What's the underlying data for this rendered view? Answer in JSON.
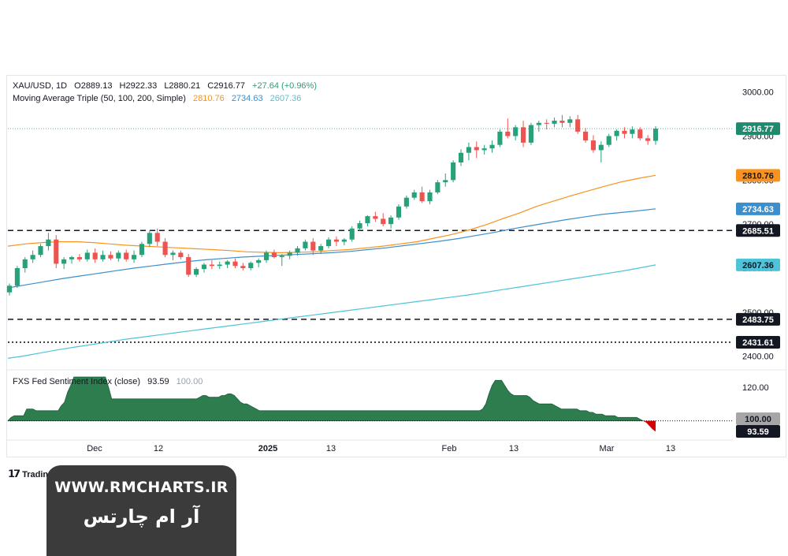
{
  "legend": {
    "symbol": "XAU/USD, 1D",
    "open": "O2889.13",
    "high": "H2922.33",
    "low": "L2880.21",
    "close": "C2916.77",
    "change": "+27.64 (+0.96%)",
    "ma_title": "Moving Average Triple (50, 100, 200, Simple)",
    "ma50": "2810.76",
    "ma100": "2734.63",
    "ma200": "2607.36",
    "indicator_title": "FXS Fed Sentiment Index (close)",
    "indicator_value": "93.59",
    "indicator_base": "100.00"
  },
  "colors": {
    "up": "#26a17a",
    "down": "#ef5350",
    "ma50": "#f7931e",
    "ma100": "#3b8fcc",
    "ma200": "#4fc3d8",
    "price_label": "#1f8a6e",
    "sentiment_fill": "#2e7d4f",
    "sentiment_negative": "#d50000"
  },
  "price_axis_ticks": [
    "3000.00",
    "2900.00",
    "2800.00",
    "2700.00",
    "2600.00",
    "2500.00",
    "2400.00"
  ],
  "indicator_axis_ticks": [
    "120.00"
  ],
  "x_axis_labels": [
    {
      "label": "Dec",
      "bold": false
    },
    {
      "label": "12",
      "bold": false
    },
    {
      "label": "2025",
      "bold": true
    },
    {
      "label": "13",
      "bold": false
    },
    {
      "label": "Feb",
      "bold": false
    },
    {
      "label": "13",
      "bold": false
    },
    {
      "label": "Mar",
      "bold": false
    },
    {
      "label": "13",
      "bold": false
    }
  ],
  "price_badges": [
    {
      "text": "2916.77",
      "value": 2916.77,
      "style": "current"
    },
    {
      "text": "2810.76",
      "value": 2810.76,
      "style": "ma50"
    },
    {
      "text": "2734.63",
      "value": 2734.63,
      "style": "ma100"
    },
    {
      "text": "2685.51",
      "value": 2685.51,
      "style": "level"
    },
    {
      "text": "2607.36",
      "value": 2607.36,
      "style": "ma200"
    },
    {
      "text": "2483.75",
      "value": 2483.75,
      "style": "level"
    },
    {
      "text": "2431.61",
      "value": 2431.61,
      "style": "level"
    }
  ],
  "indicator_badges": [
    {
      "text": "100.00",
      "value": 100,
      "style": "base"
    },
    {
      "text": "93.59",
      "value": 93.59,
      "style": "dark"
    }
  ],
  "chart_data": {
    "type": "candlestick",
    "symbol": "XAU/USD",
    "timeframe": "1D",
    "ylim": [
      2385,
      3012
    ],
    "horizontal_levels": [
      {
        "value": 2685.51,
        "style": "dashed"
      },
      {
        "value": 2483.75,
        "style": "dashed"
      },
      {
        "value": 2431.61,
        "style": "dotted"
      }
    ],
    "candles": [
      [
        2545,
        2565,
        2538,
        2560
      ],
      [
        2560,
        2605,
        2555,
        2600
      ],
      [
        2600,
        2625,
        2590,
        2620
      ],
      [
        2620,
        2640,
        2612,
        2630
      ],
      [
        2630,
        2655,
        2625,
        2650
      ],
      [
        2650,
        2680,
        2640,
        2665
      ],
      [
        2665,
        2675,
        2600,
        2610
      ],
      [
        2610,
        2625,
        2598,
        2620
      ],
      [
        2620,
        2628,
        2610,
        2625
      ],
      [
        2625,
        2632,
        2615,
        2620
      ],
      [
        2620,
        2642,
        2615,
        2635
      ],
      [
        2635,
        2645,
        2612,
        2620
      ],
      [
        2620,
        2640,
        2615,
        2630
      ],
      [
        2630,
        2638,
        2618,
        2622
      ],
      [
        2622,
        2640,
        2615,
        2635
      ],
      [
        2635,
        2642,
        2615,
        2620
      ],
      [
        2620,
        2640,
        2612,
        2630
      ],
      [
        2630,
        2660,
        2625,
        2655
      ],
      [
        2655,
        2685,
        2648,
        2680
      ],
      [
        2680,
        2690,
        2650,
        2660
      ],
      [
        2660,
        2668,
        2625,
        2630
      ],
      [
        2630,
        2640,
        2618,
        2635
      ],
      [
        2635,
        2640,
        2620,
        2625
      ],
      [
        2625,
        2632,
        2580,
        2585
      ],
      [
        2585,
        2602,
        2580,
        2598
      ],
      [
        2598,
        2612,
        2590,
        2608
      ],
      [
        2608,
        2618,
        2598,
        2605
      ],
      [
        2605,
        2615,
        2598,
        2608
      ],
      [
        2608,
        2618,
        2600,
        2615
      ],
      [
        2615,
        2622,
        2600,
        2605
      ],
      [
        2605,
        2612,
        2595,
        2600
      ],
      [
        2600,
        2615,
        2595,
        2612
      ],
      [
        2612,
        2622,
        2602,
        2618
      ],
      [
        2618,
        2640,
        2612,
        2635
      ],
      [
        2635,
        2642,
        2622,
        2625
      ],
      [
        2625,
        2632,
        2605,
        2628
      ],
      [
        2628,
        2640,
        2620,
        2635
      ],
      [
        2635,
        2650,
        2628,
        2645
      ],
      [
        2645,
        2665,
        2640,
        2660
      ],
      [
        2660,
        2668,
        2630,
        2640
      ],
      [
        2640,
        2655,
        2632,
        2650
      ],
      [
        2650,
        2670,
        2645,
        2665
      ],
      [
        2665,
        2672,
        2650,
        2660
      ],
      [
        2660,
        2668,
        2652,
        2665
      ],
      [
        2665,
        2695,
        2660,
        2690
      ],
      [
        2690,
        2708,
        2685,
        2702
      ],
      [
        2702,
        2720,
        2695,
        2718
      ],
      [
        2718,
        2728,
        2705,
        2712
      ],
      [
        2712,
        2725,
        2695,
        2700
      ],
      [
        2700,
        2720,
        2690,
        2715
      ],
      [
        2715,
        2745,
        2710,
        2740
      ],
      [
        2740,
        2765,
        2735,
        2760
      ],
      [
        2760,
        2778,
        2755,
        2772
      ],
      [
        2772,
        2785,
        2748,
        2752
      ],
      [
        2752,
        2778,
        2745,
        2772
      ],
      [
        2772,
        2800,
        2768,
        2795
      ],
      [
        2795,
        2815,
        2785,
        2800
      ],
      [
        2800,
        2845,
        2795,
        2840
      ],
      [
        2840,
        2870,
        2832,
        2862
      ],
      [
        2862,
        2885,
        2845,
        2875
      ],
      [
        2875,
        2888,
        2850,
        2868
      ],
      [
        2868,
        2880,
        2858,
        2872
      ],
      [
        2872,
        2890,
        2862,
        2880
      ],
      [
        2880,
        2915,
        2875,
        2910
      ],
      [
        2910,
        2940,
        2895,
        2900
      ],
      [
        2900,
        2925,
        2890,
        2920
      ],
      [
        2920,
        2935,
        2875,
        2885
      ],
      [
        2885,
        2930,
        2880,
        2925
      ],
      [
        2925,
        2935,
        2910,
        2930
      ],
      [
        2930,
        2938,
        2915,
        2928
      ],
      [
        2928,
        2942,
        2920,
        2935
      ],
      [
        2935,
        2948,
        2920,
        2930
      ],
      [
        2930,
        2945,
        2920,
        2938
      ],
      [
        2938,
        2948,
        2905,
        2910
      ],
      [
        2910,
        2918,
        2885,
        2890
      ],
      [
        2890,
        2902,
        2862,
        2868
      ],
      [
        2868,
        2888,
        2840,
        2880
      ],
      [
        2880,
        2905,
        2875,
        2900
      ],
      [
        2900,
        2915,
        2890,
        2912
      ],
      [
        2912,
        2920,
        2895,
        2905
      ],
      [
        2905,
        2922,
        2895,
        2915
      ],
      [
        2915,
        2920,
        2890,
        2895
      ],
      [
        2895,
        2902,
        2880,
        2889
      ],
      [
        2889.13,
        2922.33,
        2880.21,
        2916.77
      ]
    ],
    "series": [
      {
        "name": "Moving Average Triple (50, 100, 200, Simple) 50",
        "last": 2810.76,
        "values": [
          2650,
          2655,
          2658,
          2660,
          2660,
          2658,
          2655,
          2652,
          2650,
          2648,
          2646,
          2644,
          2642,
          2640,
          2637,
          2636,
          2635,
          2636,
          2637,
          2640,
          2642,
          2646,
          2650,
          2655,
          2660,
          2668,
          2676,
          2686,
          2698,
          2712,
          2725,
          2740,
          2752,
          2764,
          2775,
          2786,
          2796,
          2804,
          2810.76
        ]
      },
      {
        "name": "Moving Average Triple (50, 100, 200, Simple) 100",
        "last": 2734.63,
        "values": [
          2555,
          2562,
          2569,
          2576,
          2582,
          2588,
          2594,
          2600,
          2605,
          2610,
          2615,
          2619,
          2622,
          2625,
          2627,
          2629,
          2631,
          2633,
          2635,
          2638,
          2642,
          2646,
          2651,
          2656,
          2661,
          2667,
          2674,
          2681,
          2689,
          2696,
          2703,
          2710,
          2716,
          2722,
          2726,
          2730,
          2734.63
        ]
      },
      {
        "name": "Moving Average Triple (50, 100, 200, Simple) 200",
        "last": 2607.36,
        "values": [
          2395,
          2401,
          2408,
          2415,
          2421,
          2427,
          2433,
          2439,
          2444,
          2449,
          2454,
          2459,
          2464,
          2469,
          2474,
          2479,
          2484,
          2489,
          2494,
          2499,
          2504,
          2509,
          2514,
          2519,
          2524,
          2529,
          2534,
          2539,
          2545,
          2551,
          2557,
          2563,
          2569,
          2575,
          2581,
          2587,
          2593,
          2600,
          2607.36
        ]
      }
    ],
    "indicator": {
      "name": "FXS Fed Sentiment Index (close)",
      "baseline": 100,
      "ylim": [
        90,
        126
      ],
      "values": [
        100,
        102,
        103,
        103,
        103,
        103,
        107,
        107,
        107,
        106,
        106,
        106,
        106,
        106,
        106,
        106,
        106,
        109,
        111,
        117,
        121,
        126,
        126,
        126,
        126,
        126,
        126,
        126,
        126,
        126,
        126,
        126,
        120,
        113,
        113,
        113,
        113,
        113,
        113,
        113,
        113,
        113,
        113,
        113,
        113,
        113,
        113,
        113,
        113,
        113,
        113,
        113,
        113,
        113,
        113,
        113,
        113,
        113,
        113,
        113,
        113,
        114,
        115,
        115,
        114,
        114,
        114,
        114,
        115,
        115,
        116,
        116,
        115,
        113,
        111,
        110,
        110,
        109,
        108,
        107,
        106,
        106,
        106,
        106,
        106,
        106,
        106,
        106,
        106,
        106,
        106,
        106,
        106,
        106,
        106,
        106,
        106,
        106,
        106,
        106,
        106,
        106,
        106,
        106,
        106,
        106,
        106,
        106,
        106,
        106,
        106,
        106,
        106,
        106,
        106,
        106,
        106,
        106,
        106,
        106,
        106,
        106,
        106,
        106,
        106,
        106,
        106,
        106,
        106,
        106,
        106,
        106,
        106,
        106,
        106,
        106,
        106,
        106,
        106,
        106,
        106,
        106,
        106,
        106,
        106,
        106,
        106,
        106,
        106,
        106,
        106,
        107,
        110,
        116,
        121,
        124,
        124,
        124,
        121,
        118,
        116,
        115,
        115,
        115,
        115,
        115,
        114,
        112,
        111,
        110,
        110,
        110,
        110,
        110,
        109,
        108,
        107,
        107,
        107,
        107,
        107,
        107,
        106,
        106,
        106,
        105,
        105,
        104,
        104,
        104,
        103,
        103,
        103,
        103,
        102,
        102,
        102,
        102,
        102,
        102,
        102,
        101,
        100,
        99,
        97,
        95,
        93.59
      ]
    }
  }
}
